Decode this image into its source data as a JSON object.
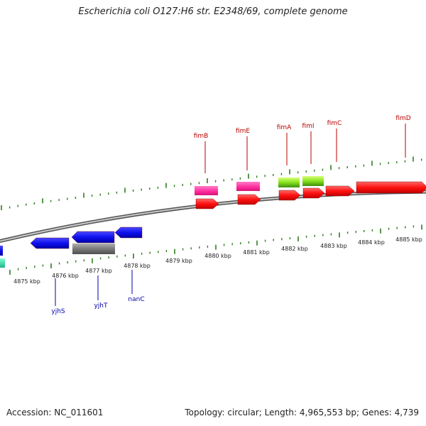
{
  "title": "Escherichia coli O127:H6 str. E2348/69, complete genome",
  "footer": {
    "accession": "Accession: NC_011601",
    "summary": "Topology: circular; Length: 4,965,553 bp; Genes: 4,739"
  },
  "colors": {
    "forward_label": "#bb0000",
    "reverse_label": "#0000aa",
    "backbone": "#8a8a8a",
    "ticks": "#2e7d1e"
  },
  "kbp_labels": [
    "4875 kbp",
    "4876 kbp",
    "4877 kbp",
    "4878 kbp",
    "4879 kbp",
    "4880 kbp",
    "4881 kbp",
    "4882 kbp",
    "4883 kbp",
    "4884 kbp",
    "4885 kbp"
  ],
  "forward_genes": [
    {
      "name": "fimB",
      "color": "#ff1a1a"
    },
    {
      "name": "fimE",
      "color": "#ff1a1a"
    },
    {
      "name": "fimA",
      "color": "#ff1a1a"
    },
    {
      "name": "fimI",
      "color": "#ff1a1a"
    },
    {
      "name": "fimC",
      "color": "#ff1a1a"
    },
    {
      "name": "fimD",
      "color": "#ff1a1a"
    }
  ],
  "reverse_genes": [
    {
      "name": "yjhS",
      "color": "#1010ee"
    },
    {
      "name": "yjhT",
      "color": "#1010ee"
    },
    {
      "name": "nanC",
      "color": "#1010ee"
    }
  ],
  "feature_tracks": [
    {
      "type": "pink",
      "color": "#ff3da6"
    },
    {
      "type": "green",
      "color": "#7ee61e"
    },
    {
      "type": "gray",
      "color": "#7a7a7a"
    }
  ]
}
